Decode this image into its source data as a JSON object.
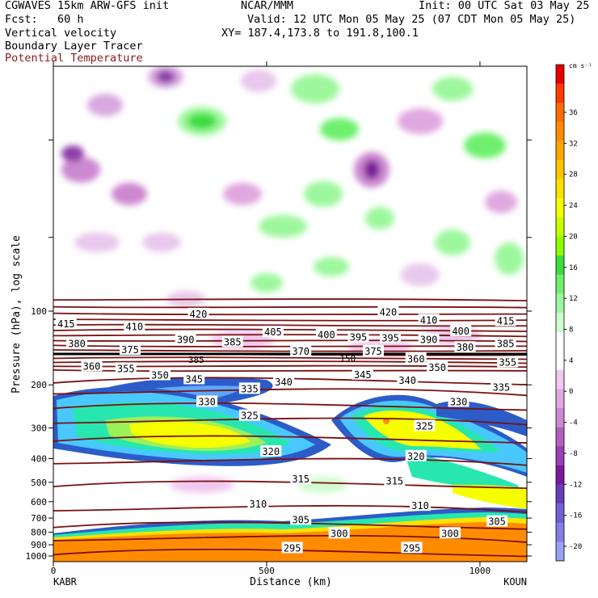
{
  "header": {
    "model": "CGWAVES 15km ARW-GFS init",
    "center": "NCAR/MMM",
    "init": "Init: 00 UTC Sat 03 May 25",
    "fcst": "Fcst:   60 h",
    "valid": "Valid: 12 UTC Mon 05 May 25 (07 CDT Mon 05 May 25)",
    "field1": "Vertical velocity",
    "field2": "Boundary Layer Tracer",
    "xy": "XY= 187.4,173.8 to 191.8,100.1",
    "field3": "Potential Temperature"
  },
  "colors": {
    "theta_line": "#7a1010",
    "label_red": "#8b1a1a"
  },
  "chart_data": {
    "type": "heatmap",
    "xlabel": "Distance (km)",
    "ylabel": "Pressure (hPa), log scale",
    "x_range": [
      0,
      1110
    ],
    "x_ticks": [
      0,
      500,
      1000
    ],
    "x_tick_labels": [
      "0",
      "500",
      "1000"
    ],
    "x_endpoints": [
      "KABR",
      "KOUN"
    ],
    "y_scale": "log",
    "y_ticks": [
      100,
      200,
      300,
      400,
      500,
      600,
      700,
      800,
      900,
      1000
    ],
    "y_tick_labels": [
      "100",
      "200",
      "300",
      "400",
      "500",
      "600",
      "700",
      "800",
      "900",
      "1000"
    ],
    "colorbar": {
      "unit": "cm s⁻¹",
      "labels": [
        "36",
        "32",
        "28",
        "24",
        "20",
        "16",
        "12",
        "8",
        "4",
        "0",
        "-4",
        "-8",
        "-12",
        "-16",
        "-20"
      ],
      "colors": [
        "#e60000",
        "#ff3a00",
        "#ff6a00",
        "#ff8c00",
        "#ffa500",
        "#ffc400",
        "#ffe000",
        "#f5ff00",
        "#c8ff00",
        "#8cff00",
        "#3cdc3c",
        "#6ef06e",
        "#9df79d",
        "#cdfccd",
        "#ffffff",
        "#ffffff",
        "#f0c8f0",
        "#e0a8e0",
        "#cc88d0",
        "#b060c0",
        "#9840b0",
        "#7a1a9a",
        "#6a3cb8",
        "#6f60d4",
        "#7f80e4",
        "#9aa0f4"
      ]
    },
    "theta_labels": [
      {
        "v": "415",
        "x": 30,
        "p": 113
      },
      {
        "v": "410",
        "x": 190,
        "p": 116
      },
      {
        "v": "420",
        "x": 340,
        "p": 103
      },
      {
        "v": "405",
        "x": 515,
        "p": 122
      },
      {
        "v": "400",
        "x": 640,
        "p": 125
      },
      {
        "v": "395",
        "x": 715,
        "p": 128
      },
      {
        "v": "420",
        "x": 785,
        "p": 101
      },
      {
        "v": "395",
        "x": 790,
        "p": 129
      },
      {
        "v": "410",
        "x": 880,
        "p": 109
      },
      {
        "v": "400",
        "x": 955,
        "p": 121
      },
      {
        "v": "415",
        "x": 1060,
        "p": 110
      },
      {
        "v": "380",
        "x": 55,
        "p": 136
      },
      {
        "v": "390",
        "x": 310,
        "p": 131
      },
      {
        "v": "385",
        "x": 420,
        "p": 134
      },
      {
        "v": "390",
        "x": 880,
        "p": 131
      },
      {
        "v": "380",
        "x": 965,
        "p": 141
      },
      {
        "v": "385",
        "x": 1060,
        "p": 136
      },
      {
        "v": "375",
        "x": 180,
        "p": 144
      },
      {
        "v": "370",
        "x": 580,
        "p": 146
      },
      {
        "v": "375",
        "x": 750,
        "p": 146
      },
      {
        "v": "360",
        "x": 850,
        "p": 157
      },
      {
        "v": "355",
        "x": 1065,
        "p": 162
      },
      {
        "v": "360",
        "x": 90,
        "p": 168
      },
      {
        "v": "355",
        "x": 170,
        "p": 172
      },
      {
        "v": "350",
        "x": 250,
        "p": 183
      },
      {
        "v": "350",
        "x": 900,
        "p": 170
      },
      {
        "v": "345",
        "x": 330,
        "p": 190
      },
      {
        "v": "345",
        "x": 725,
        "p": 182
      },
      {
        "v": "340",
        "x": 540,
        "p": 195
      },
      {
        "v": "340",
        "x": 830,
        "p": 192
      },
      {
        "v": "335",
        "x": 1050,
        "p": 205
      },
      {
        "v": "335",
        "x": 460,
        "p": 208
      },
      {
        "v": "330",
        "x": 360,
        "p": 235
      },
      {
        "v": "330",
        "x": 950,
        "p": 235
      },
      {
        "v": "325",
        "x": 460,
        "p": 268
      },
      {
        "v": "325",
        "x": 870,
        "p": 295
      },
      {
        "v": "320",
        "x": 510,
        "p": 375
      },
      {
        "v": "320",
        "x": 850,
        "p": 392
      },
      {
        "v": "315",
        "x": 580,
        "p": 485
      },
      {
        "v": "315",
        "x": 800,
        "p": 495
      },
      {
        "v": "310",
        "x": 480,
        "p": 615
      },
      {
        "v": "310",
        "x": 860,
        "p": 625
      },
      {
        "v": "305",
        "x": 580,
        "p": 712
      },
      {
        "v": "305",
        "x": 1040,
        "p": 725
      },
      {
        "v": "300",
        "x": 670,
        "p": 810
      },
      {
        "v": "300",
        "x": 930,
        "p": 810
      },
      {
        "v": "295",
        "x": 560,
        "p": 930
      },
      {
        "v": "295",
        "x": 840,
        "p": 930
      }
    ],
    "tropopause_labels": [
      {
        "v": "385",
        "x": 335,
        "p": 158
      },
      {
        "v": "150",
        "x": 690,
        "p": 156
      }
    ]
  }
}
